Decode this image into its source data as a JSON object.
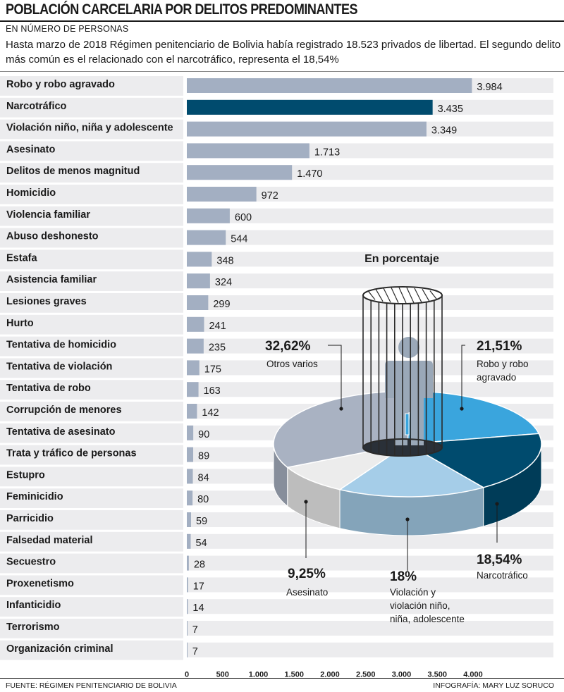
{
  "header": {
    "title": "POBLACIÓN CARCELARIA POR DELITOS PREDOMINANTES",
    "subtitle": "EN NÚMERO DE PERSONAS",
    "description": "Hasta marzo de 2018 Régimen penitenciario de Bolivia había registrado 18.523 privados de libertad. El segundo delito más común es el relacionado con el narcotráfico, representa el 18,54%"
  },
  "footer": {
    "source": "FUENTE: RÉGIMEN PENITENCIARIO DE BOLIVIA",
    "credit": "INFOGRAFÍA: MARY LUZ SORUCO"
  },
  "chart_data": [
    {
      "type": "bar",
      "orientation": "horizontal",
      "categories": [
        "Robo y robo agravado",
        "Narcotráfico",
        "Violación niño, niña y adolescente",
        "Asesinato",
        "Delitos de menos magnitud",
        "Homicidio",
        "Violencia familiar",
        "Abuso deshonesto",
        "Estafa",
        "Asistencia familiar",
        "Lesiones graves",
        "Hurto",
        "Tentativa de homicidio",
        "Tentativa de violación",
        "Tentativa de robo",
        "Corrupción de menores",
        "Tentativa de asesinato",
        "Trata y tráfico de personas",
        "Estupro",
        "Feminicidio",
        "Parricidio",
        "Falsedad material",
        "Secuestro",
        "Proxenetismo",
        "Infanticidio",
        "Terrorismo",
        "Organización criminal"
      ],
      "values": [
        3984,
        3435,
        3349,
        1713,
        1470,
        972,
        600,
        544,
        348,
        324,
        299,
        241,
        235,
        175,
        163,
        142,
        90,
        89,
        84,
        80,
        59,
        54,
        28,
        17,
        14,
        7,
        7
      ],
      "value_labels": [
        "3.984",
        "3.435",
        "3.349",
        "1.713",
        "1.470",
        "972",
        "600",
        "544",
        "348",
        "324",
        "299",
        "241",
        "235",
        "175",
        "163",
        "142",
        "90",
        "89",
        "84",
        "80",
        "59",
        "54",
        "28",
        "17",
        "14",
        "7",
        "7"
      ],
      "highlight": "Narcotráfico",
      "xlim": [
        0,
        4000
      ],
      "xticks": [
        0,
        500,
        1000,
        1500,
        2000,
        2500,
        3000,
        3500,
        4000
      ],
      "xtick_labels": [
        "0",
        "500",
        "1.000",
        "1.500",
        "2.000",
        "2.500",
        "3.000",
        "3.500",
        "4.000"
      ],
      "colors": {
        "bar": "#a3afc2",
        "highlight": "#004b6e",
        "track": "#ececee"
      }
    },
    {
      "type": "pie",
      "style": "3d",
      "title": "En porcentaje",
      "slices": [
        {
          "label": "Robo y robo agravado",
          "value": 21.51,
          "value_label": "21,51%",
          "color": "#3aa5dd"
        },
        {
          "label": "Narcotráfico",
          "value": 18.54,
          "value_label": "18,54%",
          "color": "#004b6e"
        },
        {
          "label": "Violación y violación niño, niña, adolescente",
          "value": 18,
          "value_label": "18%",
          "color": "#a5cde8"
        },
        {
          "label": "Asesinato",
          "value": 9.25,
          "value_label": "9,25%",
          "color": "#ececec"
        },
        {
          "label": "Otros varios",
          "value": 32.62,
          "value_label": "32,62%",
          "color": "#a9b2c2"
        }
      ]
    }
  ]
}
